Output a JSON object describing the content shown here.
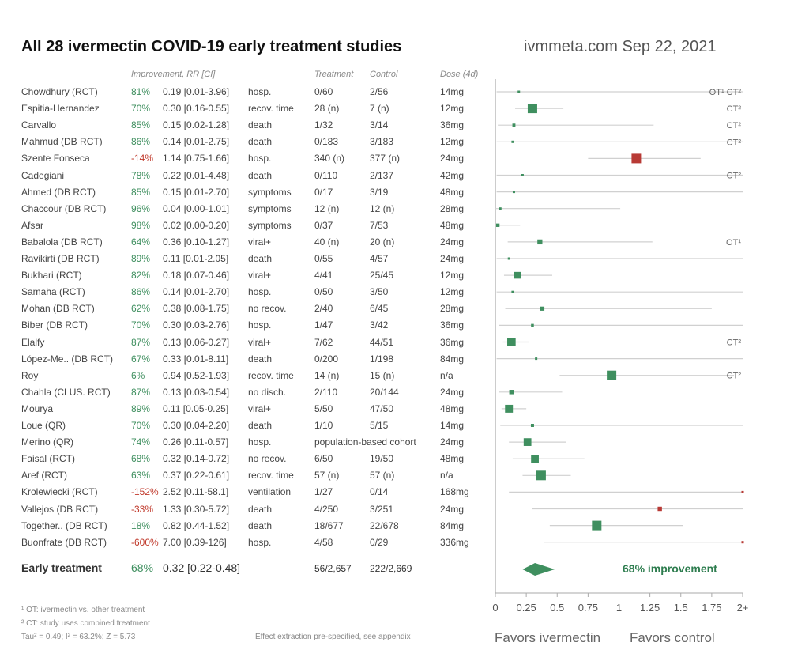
{
  "header": {
    "title": "All 28 ivermectin COVID-19 early treatment studies",
    "site": "ivmmeta.com Sep 22, 2021",
    "col_improvement": "Improvement, RR [CI]",
    "col_treatment": "Treatment",
    "col_control": "Control",
    "col_dose": "Dose (4d)"
  },
  "studies": [
    {
      "name": "Chowdhury (RCT)",
      "imp": "81%",
      "rr": "0.19 [0.01-3.96]",
      "outcome": "hosp.",
      "trt": "0/60",
      "ctl": "2/56",
      "dose": "14mg",
      "neg": false,
      "note": "OT¹ CT²"
    },
    {
      "name": "Espitia-Hernandez",
      "imp": "70%",
      "rr": "0.30 [0.16-0.55]",
      "outcome": "recov. time",
      "trt": "28 (n)",
      "ctl": "7 (n)",
      "dose": "12mg",
      "neg": false,
      "note": "CT²"
    },
    {
      "name": "Carvallo",
      "imp": "85%",
      "rr": "0.15 [0.02-1.28]",
      "outcome": "death",
      "trt": "1/32",
      "ctl": "3/14",
      "dose": "36mg",
      "neg": false,
      "note": "CT²"
    },
    {
      "name": "Mahmud (DB RCT)",
      "imp": "86%",
      "rr": "0.14 [0.01-2.75]",
      "outcome": "death",
      "trt": "0/183",
      "ctl": "3/183",
      "dose": "12mg",
      "neg": false,
      "note": "CT²"
    },
    {
      "name": "Szente Fonseca",
      "imp": "-14%",
      "rr": "1.14 [0.75-1.66]",
      "outcome": "hosp.",
      "trt": "340 (n)",
      "ctl": "377 (n)",
      "dose": "24mg",
      "neg": true,
      "note": ""
    },
    {
      "name": "Cadegiani",
      "imp": "78%",
      "rr": "0.22 [0.01-4.48]",
      "outcome": "death",
      "trt": "0/110",
      "ctl": "2/137",
      "dose": "42mg",
      "neg": false,
      "note": "CT²"
    },
    {
      "name": "Ahmed (DB RCT)",
      "imp": "85%",
      "rr": "0.15 [0.01-2.70]",
      "outcome": "symptoms",
      "trt": "0/17",
      "ctl": "3/19",
      "dose": "48mg",
      "neg": false,
      "note": ""
    },
    {
      "name": "Chaccour (DB RCT)",
      "imp": "96%",
      "rr": "0.04 [0.00-1.01]",
      "outcome": "symptoms",
      "trt": "12 (n)",
      "ctl": "12 (n)",
      "dose": "28mg",
      "neg": false,
      "note": ""
    },
    {
      "name": "Afsar",
      "imp": "98%",
      "rr": "0.02 [0.00-0.20]",
      "outcome": "symptoms",
      "trt": "0/37",
      "ctl": "7/53",
      "dose": "48mg",
      "neg": false,
      "note": ""
    },
    {
      "name": "Babalola (DB RCT)",
      "imp": "64%",
      "rr": "0.36 [0.10-1.27]",
      "outcome": "viral+",
      "trt": "40 (n)",
      "ctl": "20 (n)",
      "dose": "24mg",
      "neg": false,
      "note": "OT¹"
    },
    {
      "name": "Ravikirti (DB RCT)",
      "imp": "89%",
      "rr": "0.11 [0.01-2.05]",
      "outcome": "death",
      "trt": "0/55",
      "ctl": "4/57",
      "dose": "24mg",
      "neg": false,
      "note": ""
    },
    {
      "name": "Bukhari (RCT)",
      "imp": "82%",
      "rr": "0.18 [0.07-0.46]",
      "outcome": "viral+",
      "trt": "4/41",
      "ctl": "25/45",
      "dose": "12mg",
      "neg": false,
      "note": ""
    },
    {
      "name": "Samaha (RCT)",
      "imp": "86%",
      "rr": "0.14 [0.01-2.70]",
      "outcome": "hosp.",
      "trt": "0/50",
      "ctl": "3/50",
      "dose": "12mg",
      "neg": false,
      "note": ""
    },
    {
      "name": "Mohan (DB RCT)",
      "imp": "62%",
      "rr": "0.38 [0.08-1.75]",
      "outcome": "no recov.",
      "trt": "2/40",
      "ctl": "6/45",
      "dose": "28mg",
      "neg": false,
      "note": ""
    },
    {
      "name": "Biber (DB RCT)",
      "imp": "70%",
      "rr": "0.30 [0.03-2.76]",
      "outcome": "hosp.",
      "trt": "1/47",
      "ctl": "3/42",
      "dose": "36mg",
      "neg": false,
      "note": ""
    },
    {
      "name": "Elalfy",
      "imp": "87%",
      "rr": "0.13 [0.06-0.27]",
      "outcome": "viral+",
      "trt": "7/62",
      "ctl": "44/51",
      "dose": "36mg",
      "neg": false,
      "note": "CT²"
    },
    {
      "name": "López-Me.. (DB RCT)",
      "imp": "67%",
      "rr": "0.33 [0.01-8.11]",
      "outcome": "death",
      "trt": "0/200",
      "ctl": "1/198",
      "dose": "84mg",
      "neg": false,
      "note": ""
    },
    {
      "name": "Roy",
      "imp": "6%",
      "rr": "0.94 [0.52-1.93]",
      "outcome": "recov. time",
      "trt": "14 (n)",
      "ctl": "15 (n)",
      "dose": "n/a",
      "neg": false,
      "note": "CT²"
    },
    {
      "name": "Chahla (CLUS. RCT)",
      "imp": "87%",
      "rr": "0.13 [0.03-0.54]",
      "outcome": "no disch.",
      "trt": "2/110",
      "ctl": "20/144",
      "dose": "24mg",
      "neg": false,
      "note": ""
    },
    {
      "name": "Mourya",
      "imp": "89%",
      "rr": "0.11 [0.05-0.25]",
      "outcome": "viral+",
      "trt": "5/50",
      "ctl": "47/50",
      "dose": "48mg",
      "neg": false,
      "note": ""
    },
    {
      "name": "Loue (QR)",
      "imp": "70%",
      "rr": "0.30 [0.04-2.20]",
      "outcome": "death",
      "trt": "1/10",
      "ctl": "5/15",
      "dose": "14mg",
      "neg": false,
      "note": ""
    },
    {
      "name": "Merino (QR)",
      "imp": "74%",
      "rr": "0.26 [0.11-0.57]",
      "outcome": "hosp.",
      "trt": "population-based cohort",
      "ctl": "",
      "dose": "24mg",
      "neg": false,
      "note": ""
    },
    {
      "name": "Faisal (RCT)",
      "imp": "68%",
      "rr": "0.32 [0.14-0.72]",
      "outcome": "no recov.",
      "trt": "6/50",
      "ctl": "19/50",
      "dose": "48mg",
      "neg": false,
      "note": ""
    },
    {
      "name": "Aref (RCT)",
      "imp": "63%",
      "rr": "0.37 [0.22-0.61]",
      "outcome": "recov. time",
      "trt": "57 (n)",
      "ctl": "57 (n)",
      "dose": "n/a",
      "neg": false,
      "note": ""
    },
    {
      "name": "Krolewiecki (RCT)",
      "imp": "-152%",
      "rr": "2.52 [0.11-58.1]",
      "outcome": "ventilation",
      "trt": "1/27",
      "ctl": "0/14",
      "dose": "168mg",
      "neg": true,
      "note": ""
    },
    {
      "name": "Vallejos (DB RCT)",
      "imp": "-33%",
      "rr": "1.33 [0.30-5.72]",
      "outcome": "death",
      "trt": "4/250",
      "ctl": "3/251",
      "dose": "24mg",
      "neg": true,
      "note": ""
    },
    {
      "name": "Together.. (DB RCT)",
      "imp": "18%",
      "rr": "0.82 [0.44-1.52]",
      "outcome": "death",
      "trt": "18/677",
      "ctl": "22/678",
      "dose": "84mg",
      "neg": false,
      "note": ""
    },
    {
      "name": "Buonfrate (DB RCT)",
      "imp": "-600%",
      "rr": "7.00 [0.39-126]",
      "outcome": "hosp.",
      "trt": "4/58",
      "ctl": "0/29",
      "dose": "336mg",
      "neg": true,
      "note": ""
    }
  ],
  "summary": {
    "label": "Early treatment",
    "imp": "68%",
    "rr": "0.32 [0.22-0.48]",
    "trt": "56/2,657",
    "ctl": "222/2,669",
    "improvement_text": "68% improvement"
  },
  "footnotes": {
    "ot": "¹ OT: ivermectin vs. other treatment",
    "ct": "² CT: study uses combined treatment",
    "stats": "Tau² = 0.49; I² = 63.2%; Z = 5.73",
    "extraction": "Effect extraction pre-specified, see appendix"
  },
  "favors_ivermectin": "Favors ivermectin",
  "favors_control": "Favors control",
  "colors": {
    "positive": "#3f8f5f",
    "negative": "#b83a35",
    "line": "#d0d0d0"
  },
  "chart_data": {
    "type": "scatter",
    "title": "All 28 ivermectin COVID-19 early treatment studies",
    "xlabel": "",
    "ylabel": "",
    "xlim": [
      0,
      2
    ],
    "x_ticks": [
      "0",
      "0.25",
      "0.5",
      "0.75",
      "1",
      "1.25",
      "1.5",
      "1.75",
      "2+"
    ],
    "series": [
      {
        "values": [
          {
            "study": "Chowdhury (RCT)",
            "rr": 0.19,
            "lo": 0.01,
            "hi": 3.96
          },
          {
            "study": "Espitia-Hernandez",
            "rr": 0.3,
            "lo": 0.16,
            "hi": 0.55
          },
          {
            "study": "Carvallo",
            "rr": 0.15,
            "lo": 0.02,
            "hi": 1.28
          },
          {
            "study": "Mahmud (DB RCT)",
            "rr": 0.14,
            "lo": 0.01,
            "hi": 2.75
          },
          {
            "study": "Szente Fonseca",
            "rr": 1.14,
            "lo": 0.75,
            "hi": 1.66
          },
          {
            "study": "Cadegiani",
            "rr": 0.22,
            "lo": 0.01,
            "hi": 4.48
          },
          {
            "study": "Ahmed (DB RCT)",
            "rr": 0.15,
            "lo": 0.01,
            "hi": 2.7
          },
          {
            "study": "Chaccour (DB RCT)",
            "rr": 0.04,
            "lo": 0.0,
            "hi": 1.01
          },
          {
            "study": "Afsar",
            "rr": 0.02,
            "lo": 0.0,
            "hi": 0.2
          },
          {
            "study": "Babalola (DB RCT)",
            "rr": 0.36,
            "lo": 0.1,
            "hi": 1.27
          },
          {
            "study": "Ravikirti (DB RCT)",
            "rr": 0.11,
            "lo": 0.01,
            "hi": 2.05
          },
          {
            "study": "Bukhari (RCT)",
            "rr": 0.18,
            "lo": 0.07,
            "hi": 0.46
          },
          {
            "study": "Samaha (RCT)",
            "rr": 0.14,
            "lo": 0.01,
            "hi": 2.7
          },
          {
            "study": "Mohan (DB RCT)",
            "rr": 0.38,
            "lo": 0.08,
            "hi": 1.75
          },
          {
            "study": "Biber (DB RCT)",
            "rr": 0.3,
            "lo": 0.03,
            "hi": 2.76
          },
          {
            "study": "Elalfy",
            "rr": 0.13,
            "lo": 0.06,
            "hi": 0.27
          },
          {
            "study": "López-Me.. (DB RCT)",
            "rr": 0.33,
            "lo": 0.01,
            "hi": 8.11
          },
          {
            "study": "Roy",
            "rr": 0.94,
            "lo": 0.52,
            "hi": 1.93
          },
          {
            "study": "Chahla (CLUS. RCT)",
            "rr": 0.13,
            "lo": 0.03,
            "hi": 0.54
          },
          {
            "study": "Mourya",
            "rr": 0.11,
            "lo": 0.05,
            "hi": 0.25
          },
          {
            "study": "Loue (QR)",
            "rr": 0.3,
            "lo": 0.04,
            "hi": 2.2
          },
          {
            "study": "Merino (QR)",
            "rr": 0.26,
            "lo": 0.11,
            "hi": 0.57
          },
          {
            "study": "Faisal (RCT)",
            "rr": 0.32,
            "lo": 0.14,
            "hi": 0.72
          },
          {
            "study": "Aref (RCT)",
            "rr": 0.37,
            "lo": 0.22,
            "hi": 0.61
          },
          {
            "study": "Krolewiecki (RCT)",
            "rr": 2.52,
            "lo": 0.11,
            "hi": 58.1
          },
          {
            "study": "Vallejos (DB RCT)",
            "rr": 1.33,
            "lo": 0.3,
            "hi": 5.72
          },
          {
            "study": "Together.. (DB RCT)",
            "rr": 0.82,
            "lo": 0.44,
            "hi": 1.52
          },
          {
            "study": "Buonfrate (DB RCT)",
            "rr": 7.0,
            "lo": 0.39,
            "hi": 126
          }
        ]
      }
    ],
    "pooled": {
      "rr": 0.32,
      "lo": 0.22,
      "hi": 0.48
    }
  }
}
